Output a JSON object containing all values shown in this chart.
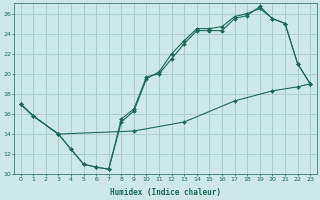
{
  "xlabel": "Humidex (Indice chaleur)",
  "bg_color": "#cce8e8",
  "grid_color": "#aacfcf",
  "line_color": "#1a6b5a",
  "xlim": [
    -0.5,
    23.5
  ],
  "ylim": [
    10,
    27
  ],
  "xticks": [
    0,
    1,
    2,
    3,
    4,
    5,
    6,
    7,
    8,
    9,
    10,
    11,
    12,
    13,
    14,
    15,
    16,
    17,
    18,
    19,
    20,
    21,
    22,
    23
  ],
  "yticks": [
    10,
    12,
    14,
    16,
    18,
    20,
    22,
    24,
    26
  ],
  "line1_x": [
    0,
    1,
    3,
    4,
    5,
    6,
    7,
    8,
    9,
    10,
    11,
    12,
    13,
    14,
    15,
    16,
    17,
    18,
    19,
    20,
    21,
    22,
    23
  ],
  "line1_y": [
    17,
    15.8,
    14.0,
    12.5,
    11.0,
    10.7,
    10.5,
    15.5,
    16.5,
    19.7,
    20.0,
    21.5,
    23.0,
    24.3,
    24.3,
    24.3,
    25.5,
    25.8,
    26.7,
    25.5,
    25.0,
    21.0,
    19.0
  ],
  "line2_x": [
    0,
    1,
    3,
    4,
    5,
    6,
    7,
    8,
    9,
    10,
    11,
    12,
    13,
    14,
    15,
    16,
    17,
    18,
    19,
    20,
    21,
    22,
    23
  ],
  "line2_y": [
    17,
    15.8,
    14.0,
    12.5,
    11.0,
    10.7,
    10.5,
    15.2,
    16.3,
    19.5,
    20.2,
    22.0,
    23.3,
    24.5,
    24.5,
    24.7,
    25.7,
    26.0,
    26.5,
    25.5,
    25.0,
    21.0,
    19.0
  ],
  "line3_x": [
    0,
    1,
    3,
    9,
    13,
    17,
    20,
    22,
    23
  ],
  "line3_y": [
    17.0,
    15.8,
    14.0,
    14.3,
    15.2,
    17.3,
    18.3,
    18.7,
    19.0
  ]
}
